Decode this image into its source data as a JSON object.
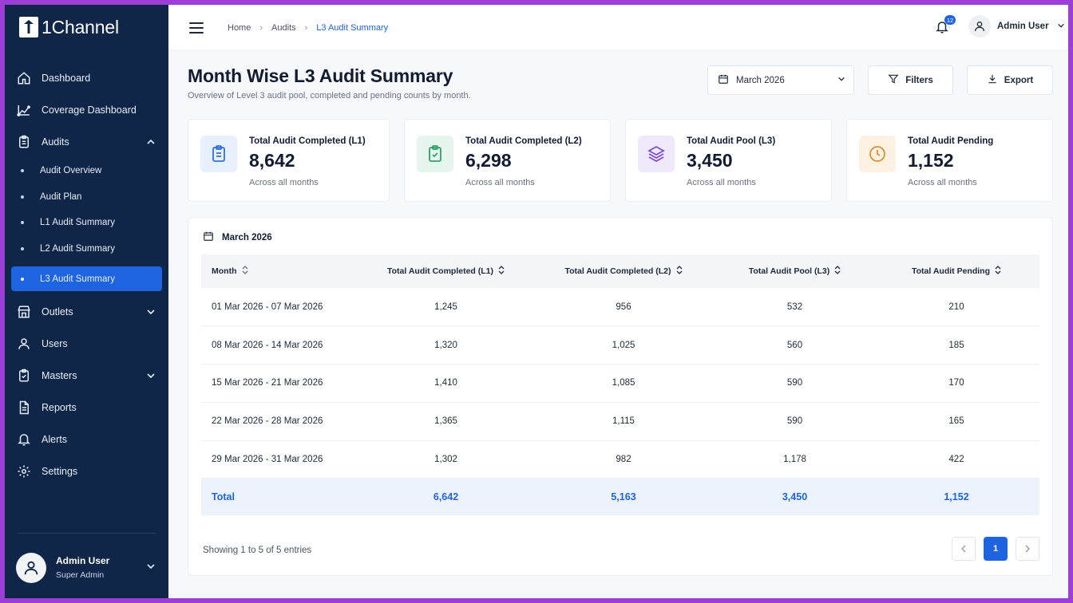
{
  "app": {
    "logo_text": "1Channel"
  },
  "sidebar": {
    "items": [
      {
        "label": "Dashboard",
        "icon": "home-icon"
      },
      {
        "label": "Coverage Dashboard",
        "icon": "chart-line-icon"
      },
      {
        "label": "Audits",
        "icon": "clipboard-icon",
        "expanded": true
      }
    ],
    "sub_items": [
      {
        "label": "Audit Overview"
      },
      {
        "label": "Audit Plan"
      },
      {
        "label": "L1 Audit Summary"
      },
      {
        "label": "L2 Audit Summary"
      },
      {
        "label": "L3 Audit Summary",
        "active": true
      }
    ],
    "items_after": [
      {
        "label": "Outlets",
        "icon": "store-icon",
        "has_chevron": true
      },
      {
        "label": "Users",
        "icon": "user-icon"
      },
      {
        "label": "Masters",
        "icon": "clipboard-check-icon",
        "has_chevron": true
      },
      {
        "label": "Reports",
        "icon": "document-icon"
      },
      {
        "label": "Alerts",
        "icon": "bell-icon"
      },
      {
        "label": "Settings",
        "icon": "gear-icon"
      }
    ],
    "footer": {
      "name": "Admin User",
      "role": "Super Admin"
    }
  },
  "topbar": {
    "breadcrumb": [
      "Home",
      "Audits",
      "L3 Audit Summary"
    ],
    "notification_count": "12",
    "user_name": "Admin User"
  },
  "page": {
    "title": "Month Wise L3 Audit Summary",
    "subtitle": "Overview of Level 3 audit pool, completed and pending counts by month.",
    "month_select": "March 2026",
    "filters_label": "Filters",
    "export_label": "Export"
  },
  "cards": [
    {
      "title": "Total Audit Completed (L1)",
      "value": "8,642",
      "note": "Across all months",
      "color": "#2f6fe4",
      "bg": "#e8f0fd"
    },
    {
      "title": "Total Audit Completed (L2)",
      "value": "6,298",
      "note": "Across all months",
      "color": "#2fa36b",
      "bg": "#e6f6ee"
    },
    {
      "title": "Total Audit Pool (L3)",
      "value": "3,450",
      "note": "Across all months",
      "color": "#7c4ddb",
      "bg": "#efe9fb"
    },
    {
      "title": "Total Audit Pending",
      "value": "1,152",
      "note": "Across all months",
      "color": "#e0902f",
      "bg": "#fdf1e3"
    }
  ],
  "table": {
    "heading": "March 2026",
    "columns": [
      "Month",
      "Total Audit Completed (L1)",
      "Total Audit Completed (L2)",
      "Total Audit Pool (L3)",
      "Total Audit Pending"
    ],
    "rows": [
      [
        "01 Mar 2026 - 07 Mar 2026",
        "1,245",
        "956",
        "532",
        "210"
      ],
      [
        "08 Mar 2026 - 14 Mar 2026",
        "1,320",
        "1,025",
        "560",
        "185"
      ],
      [
        "15 Mar 2026 - 21 Mar 2026",
        "1,410",
        "1,085",
        "590",
        "170"
      ],
      [
        "22 Mar 2026 - 28 Mar 2026",
        "1,365",
        "1,115",
        "590",
        "165"
      ],
      [
        "29 Mar 2026 - 31 Mar 2026",
        "1,302",
        "982",
        "1,178",
        "422"
      ]
    ],
    "total": [
      "Total",
      "6,642",
      "5,163",
      "3,450",
      "1,152"
    ],
    "footer_text": "Showing 1 to 5 of 5 entries",
    "current_page": "1"
  }
}
